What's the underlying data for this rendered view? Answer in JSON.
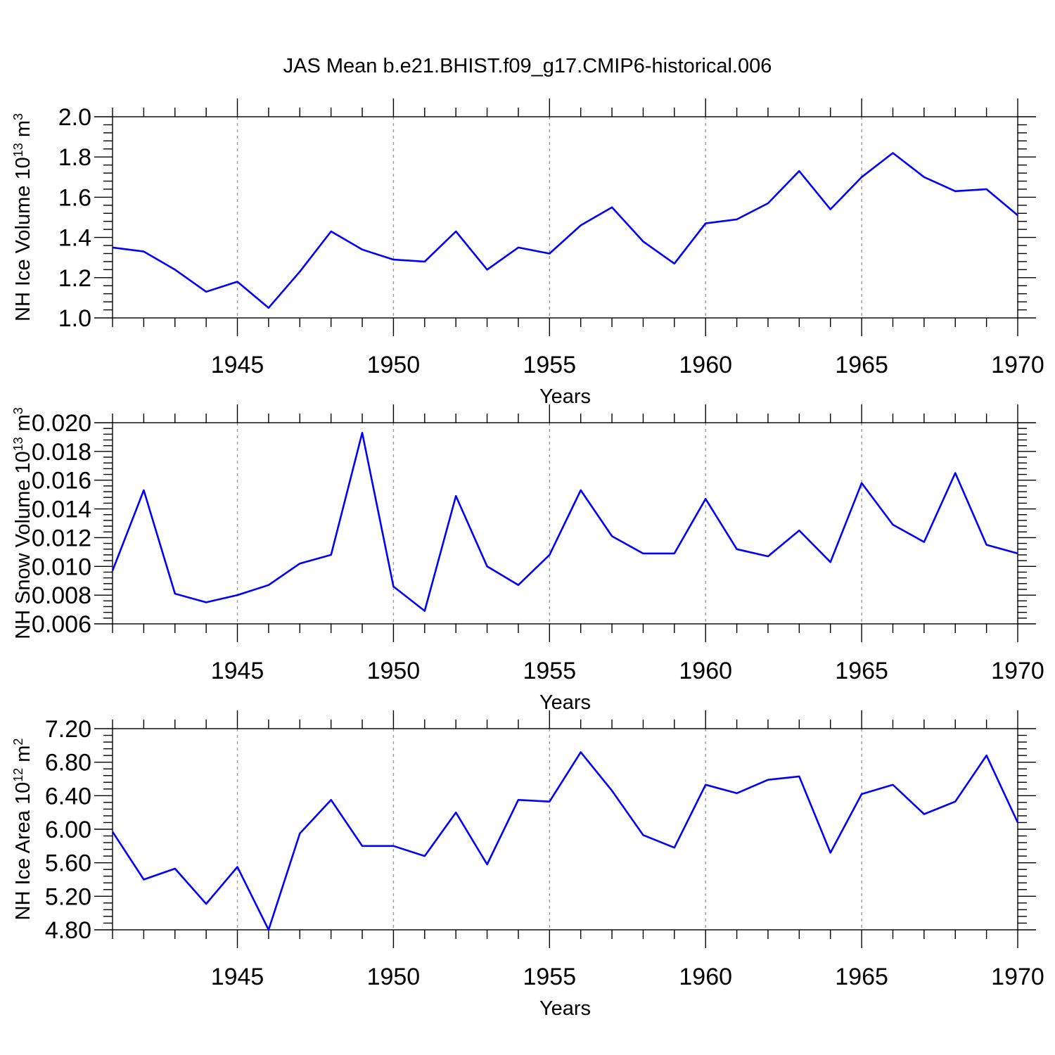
{
  "title": "JAS Mean b.e21.BHIST.f09_g17.CMIP6-historical.006",
  "chart_data": [
    {
      "type": "line",
      "ylabel": "NH Ice Volume 10",
      "ylabel_exp": "13",
      "ylabel_unit": "m",
      "ylabel_unit_exp": "3",
      "xlabel": "Years",
      "xlim": [
        1941,
        1970
      ],
      "ylim": [
        1.0,
        2.0
      ],
      "x_ticks": [
        1945,
        1950,
        1955,
        1960,
        1965,
        1970
      ],
      "y_ticks": [
        "1.0",
        "1.2",
        "1.4",
        "1.6",
        "1.8",
        "2.0"
      ],
      "color": "#0000ff",
      "x": [
        1941,
        1942,
        1943,
        1944,
        1945,
        1946,
        1947,
        1948,
        1949,
        1950,
        1951,
        1952,
        1953,
        1954,
        1955,
        1956,
        1957,
        1958,
        1959,
        1960,
        1961,
        1962,
        1963,
        1964,
        1965,
        1966,
        1967,
        1968,
        1969,
        1970
      ],
      "values": [
        1.35,
        1.33,
        1.24,
        1.13,
        1.18,
        1.05,
        1.23,
        1.43,
        1.34,
        1.29,
        1.28,
        1.43,
        1.24,
        1.35,
        1.32,
        1.46,
        1.55,
        1.38,
        1.27,
        1.47,
        1.49,
        1.57,
        1.73,
        1.54,
        1.7,
        1.82,
        1.7,
        1.63,
        1.64,
        1.51
      ]
    },
    {
      "type": "line",
      "ylabel": "NH Snow Volume 10",
      "ylabel_exp": "13",
      "ylabel_unit": "m",
      "ylabel_unit_exp": "3",
      "xlabel": "Years",
      "xlim": [
        1941,
        1970
      ],
      "ylim": [
        0.006,
        0.02
      ],
      "x_ticks": [
        1945,
        1950,
        1955,
        1960,
        1965,
        1970
      ],
      "y_ticks": [
        "0.006",
        "0.008",
        "0.010",
        "0.012",
        "0.014",
        "0.016",
        "0.018",
        "0.020"
      ],
      "color": "#0000ff",
      "x": [
        1941,
        1942,
        1943,
        1944,
        1945,
        1946,
        1947,
        1948,
        1949,
        1950,
        1951,
        1952,
        1953,
        1954,
        1955,
        1956,
        1957,
        1958,
        1959,
        1960,
        1961,
        1962,
        1963,
        1964,
        1965,
        1966,
        1967,
        1968,
        1969,
        1970
      ],
      "values": [
        0.0097,
        0.0153,
        0.0081,
        0.0075,
        0.008,
        0.0087,
        0.0102,
        0.0108,
        0.0193,
        0.0086,
        0.0069,
        0.0149,
        0.01,
        0.0087,
        0.0108,
        0.0153,
        0.0121,
        0.0109,
        0.0109,
        0.0147,
        0.0112,
        0.0107,
        0.0125,
        0.0103,
        0.0158,
        0.0129,
        0.0117,
        0.0165,
        0.0115,
        0.0109
      ]
    },
    {
      "type": "line",
      "ylabel": "NH Ice Area 10",
      "ylabel_exp": "12",
      "ylabel_unit": "m",
      "ylabel_unit_exp": "2",
      "xlabel": "Years",
      "xlim": [
        1941,
        1970
      ],
      "ylim": [
        4.8,
        7.2
      ],
      "x_ticks": [
        1945,
        1950,
        1955,
        1960,
        1965,
        1970
      ],
      "y_ticks": [
        "4.80",
        "5.20",
        "5.60",
        "6.00",
        "6.40",
        "6.80",
        "7.20"
      ],
      "color": "#0000ff",
      "x": [
        1941,
        1942,
        1943,
        1944,
        1945,
        1946,
        1947,
        1948,
        1949,
        1950,
        1951,
        1952,
        1953,
        1954,
        1955,
        1956,
        1957,
        1958,
        1959,
        1960,
        1961,
        1962,
        1963,
        1964,
        1965,
        1966,
        1967,
        1968,
        1969,
        1970
      ],
      "values": [
        5.97,
        5.4,
        5.53,
        5.11,
        5.55,
        4.8,
        5.95,
        6.35,
        5.8,
        5.8,
        5.68,
        6.2,
        5.58,
        6.35,
        6.33,
        6.92,
        6.46,
        5.93,
        5.78,
        6.53,
        6.43,
        6.59,
        6.63,
        5.72,
        6.42,
        6.53,
        6.18,
        6.33,
        6.88,
        6.08
      ]
    }
  ]
}
